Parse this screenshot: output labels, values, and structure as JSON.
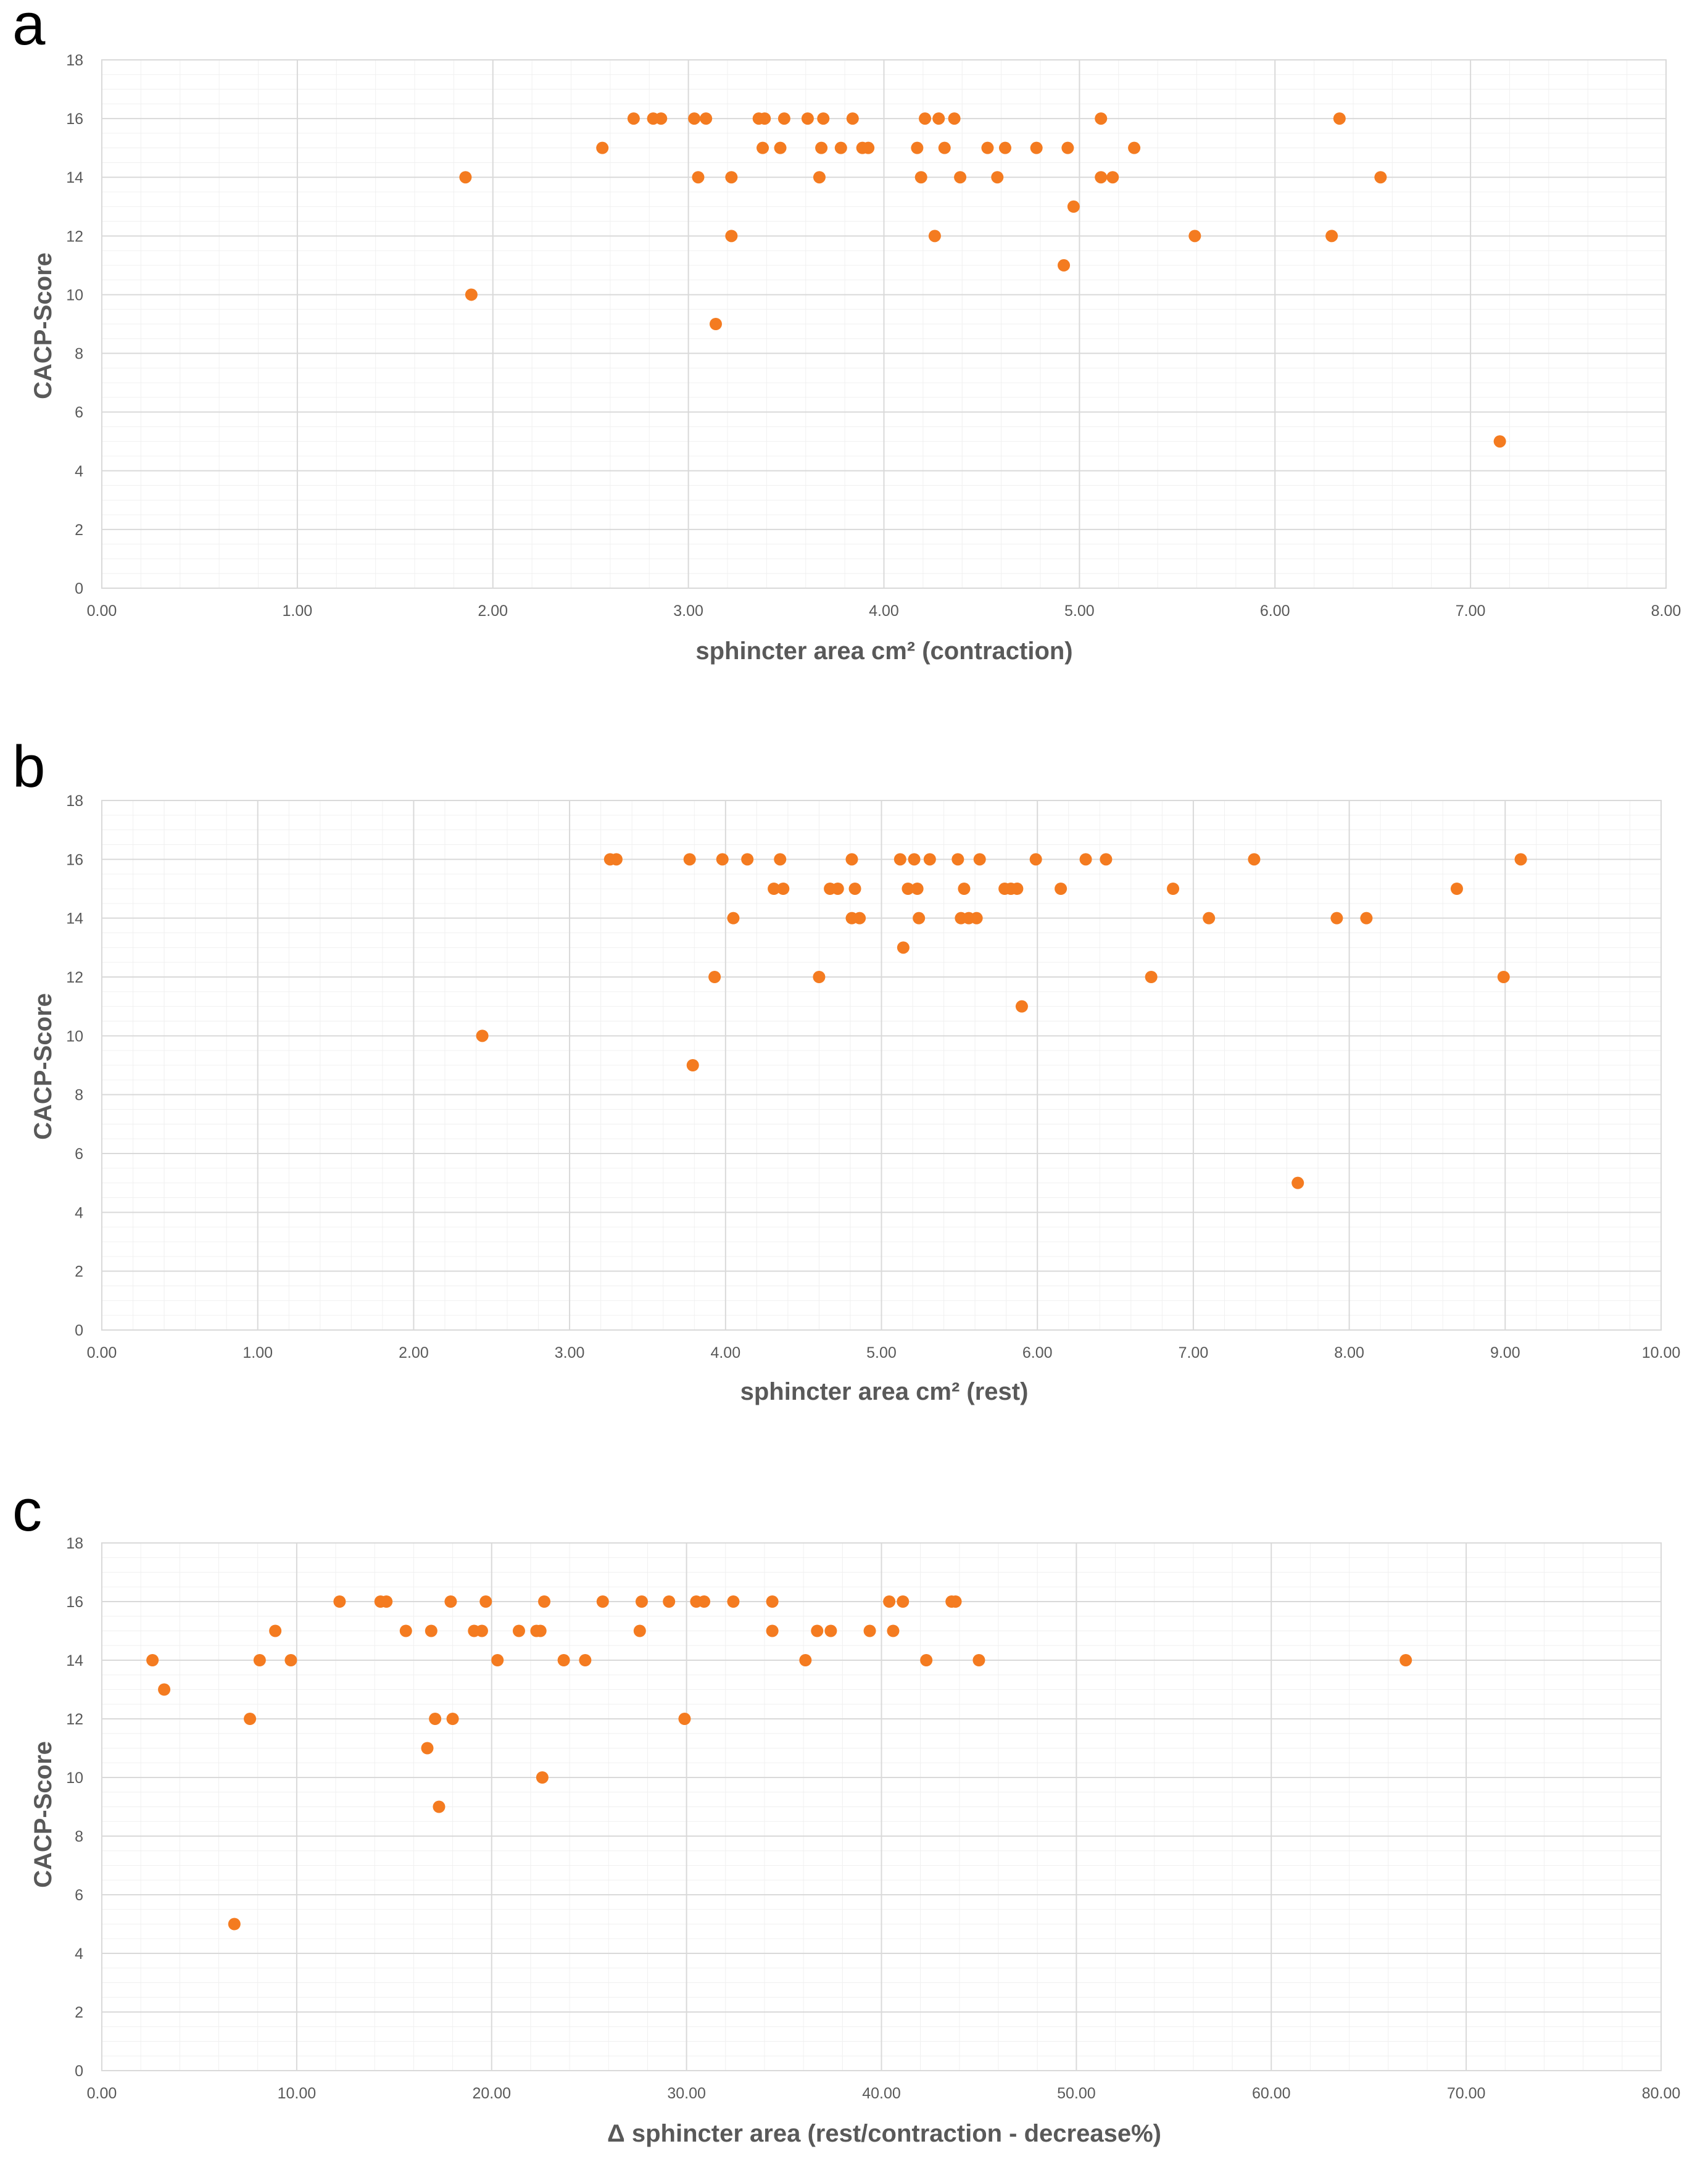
{
  "chart_data": [
    {
      "type": "scatter",
      "panel_label": "a",
      "title": "",
      "xlabel": "sphincter area cm² (contraction)",
      "ylabel": "CACP-Score",
      "xlim": [
        0,
        8
      ],
      "ylim": [
        0,
        18
      ],
      "x_ticks": [
        "0.00",
        "1.00",
        "2.00",
        "3.00",
        "4.00",
        "5.00",
        "6.00",
        "7.00",
        "8.00"
      ],
      "y_ticks": [
        "0",
        "2",
        "4",
        "6",
        "8",
        "10",
        "12",
        "14",
        "16",
        "18"
      ],
      "grid": true,
      "marker_color": "#f47b20",
      "points": [
        [
          1.86,
          14
        ],
        [
          1.89,
          10
        ],
        [
          2.56,
          15
        ],
        [
          2.72,
          16
        ],
        [
          2.82,
          16
        ],
        [
          2.86,
          16
        ],
        [
          3.03,
          16
        ],
        [
          3.09,
          16
        ],
        [
          3.05,
          14
        ],
        [
          3.14,
          9
        ],
        [
          3.22,
          14
        ],
        [
          3.22,
          12
        ],
        [
          3.36,
          16
        ],
        [
          3.39,
          16
        ],
        [
          3.38,
          15
        ],
        [
          3.47,
          15
        ],
        [
          3.49,
          16
        ],
        [
          3.61,
          16
        ],
        [
          3.69,
          16
        ],
        [
          3.68,
          15
        ],
        [
          3.67,
          14
        ],
        [
          3.78,
          15
        ],
        [
          3.84,
          16
        ],
        [
          3.89,
          15
        ],
        [
          3.92,
          15
        ],
        [
          4.17,
          15
        ],
        [
          4.21,
          16
        ],
        [
          4.19,
          14
        ],
        [
          4.26,
          12
        ],
        [
          4.28,
          16
        ],
        [
          4.31,
          15
        ],
        [
          4.36,
          16
        ],
        [
          4.39,
          14
        ],
        [
          4.53,
          15
        ],
        [
          4.58,
          14
        ],
        [
          4.62,
          15
        ],
        [
          4.78,
          15
        ],
        [
          4.92,
          11
        ],
        [
          4.94,
          15
        ],
        [
          4.97,
          13
        ],
        [
          5.11,
          16
        ],
        [
          5.11,
          14
        ],
        [
          5.17,
          14
        ],
        [
          5.28,
          15
        ],
        [
          5.59,
          12
        ],
        [
          6.29,
          12
        ],
        [
          6.33,
          16
        ],
        [
          6.54,
          14
        ],
        [
          7.15,
          5
        ]
      ]
    },
    {
      "type": "scatter",
      "panel_label": "b",
      "title": "",
      "xlabel": "sphincter area cm² (rest)",
      "ylabel": "CACP-Score",
      "xlim": [
        0,
        10
      ],
      "ylim": [
        0,
        18
      ],
      "x_ticks": [
        "0.00",
        "1.00",
        "2.00",
        "3.00",
        "4.00",
        "5.00",
        "6.00",
        "7.00",
        "8.00",
        "9.00",
        "10.00"
      ],
      "y_ticks": [
        "0",
        "2",
        "4",
        "6",
        "8",
        "10",
        "12",
        "14",
        "16",
        "18"
      ],
      "grid": true,
      "marker_color": "#f47b20",
      "points": [
        [
          2.44,
          10
        ],
        [
          3.26,
          16
        ],
        [
          3.3,
          16
        ],
        [
          3.77,
          16
        ],
        [
          3.79,
          9
        ],
        [
          3.93,
          12
        ],
        [
          3.98,
          16
        ],
        [
          4.05,
          14
        ],
        [
          4.14,
          16
        ],
        [
          4.31,
          15
        ],
        [
          4.35,
          16
        ],
        [
          4.37,
          15
        ],
        [
          4.6,
          12
        ],
        [
          4.67,
          15
        ],
        [
          4.72,
          15
        ],
        [
          4.81,
          16
        ],
        [
          4.81,
          14
        ],
        [
          4.83,
          15
        ],
        [
          4.86,
          14
        ],
        [
          5.14,
          13
        ],
        [
          5.12,
          16
        ],
        [
          5.17,
          15
        ],
        [
          5.21,
          16
        ],
        [
          5.23,
          15
        ],
        [
          5.24,
          14
        ],
        [
          5.31,
          16
        ],
        [
          5.49,
          16
        ],
        [
          5.51,
          14
        ],
        [
          5.53,
          15
        ],
        [
          5.56,
          14
        ],
        [
          5.61,
          14
        ],
        [
          5.63,
          16
        ],
        [
          5.79,
          15
        ],
        [
          5.83,
          15
        ],
        [
          5.87,
          15
        ],
        [
          5.9,
          11
        ],
        [
          5.99,
          16
        ],
        [
          6.15,
          15
        ],
        [
          6.31,
          16
        ],
        [
          6.44,
          16
        ],
        [
          6.73,
          12
        ],
        [
          6.87,
          15
        ],
        [
          7.1,
          14
        ],
        [
          7.39,
          16
        ],
        [
          7.67,
          5
        ],
        [
          7.92,
          14
        ],
        [
          8.11,
          14
        ],
        [
          8.69,
          15
        ],
        [
          8.99,
          12
        ],
        [
          9.1,
          16
        ]
      ]
    },
    {
      "type": "scatter",
      "panel_label": "c",
      "title": "",
      "xlabel": "Δ sphincter area (rest/contraction - decrease%)",
      "ylabel": "CACP-Score",
      "xlim": [
        0,
        80
      ],
      "ylim": [
        0,
        18
      ],
      "x_ticks": [
        "0.00",
        "10.00",
        "20.00",
        "30.00",
        "40.00",
        "50.00",
        "60.00",
        "70.00",
        "80.00"
      ],
      "y_ticks": [
        "0",
        "2",
        "4",
        "6",
        "8",
        "10",
        "12",
        "14",
        "16",
        "18"
      ],
      "grid": true,
      "marker_color": "#f47b20",
      "points": [
        [
          2.6,
          14
        ],
        [
          3.2,
          13
        ],
        [
          6.8,
          5
        ],
        [
          7.6,
          12
        ],
        [
          8.1,
          14
        ],
        [
          8.9,
          15
        ],
        [
          9.7,
          14
        ],
        [
          12.2,
          16
        ],
        [
          14.3,
          16
        ],
        [
          14.6,
          16
        ],
        [
          15.6,
          15
        ],
        [
          16.7,
          11
        ],
        [
          16.9,
          15
        ],
        [
          17.1,
          12
        ],
        [
          17.3,
          9
        ],
        [
          17.9,
          16
        ],
        [
          18.0,
          12
        ],
        [
          19.1,
          15
        ],
        [
          19.5,
          15
        ],
        [
          19.7,
          16
        ],
        [
          20.3,
          14
        ],
        [
          21.4,
          15
        ],
        [
          22.3,
          15
        ],
        [
          22.5,
          15
        ],
        [
          22.6,
          10
        ],
        [
          22.7,
          16
        ],
        [
          23.7,
          14
        ],
        [
          24.8,
          14
        ],
        [
          25.7,
          16
        ],
        [
          27.6,
          15
        ],
        [
          27.7,
          16
        ],
        [
          29.1,
          16
        ],
        [
          29.9,
          12
        ],
        [
          30.5,
          16
        ],
        [
          30.9,
          16
        ],
        [
          32.4,
          16
        ],
        [
          34.4,
          15
        ],
        [
          34.4,
          16
        ],
        [
          36.1,
          14
        ],
        [
          36.7,
          15
        ],
        [
          37.4,
          15
        ],
        [
          39.4,
          15
        ],
        [
          40.4,
          16
        ],
        [
          40.6,
          15
        ],
        [
          41.1,
          16
        ],
        [
          42.3,
          14
        ],
        [
          43.6,
          16
        ],
        [
          43.8,
          16
        ],
        [
          45.0,
          14
        ],
        [
          66.9,
          14
        ]
      ]
    }
  ]
}
